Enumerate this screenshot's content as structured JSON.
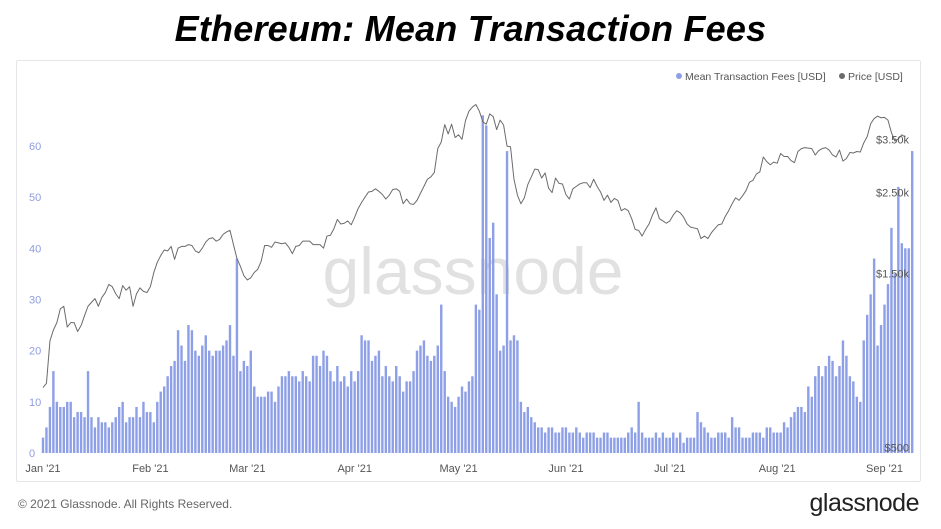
{
  "title": "Ethereum: Mean Transaction Fees",
  "footer": {
    "copyright": "© 2021 Glassnode. All Rights Reserved.",
    "brand": "glassnode"
  },
  "watermark": "glassnode",
  "colors": {
    "fees": "#8d9fe6",
    "price": "#6b6b6b",
    "left_axis_text": "#8f9dde",
    "right_axis_text": "#555555"
  },
  "chart_data": {
    "type": "bar",
    "title": "Ethereum: Mean Transaction Fees",
    "legend": [
      "Mean Transaction Fees [USD]",
      "Price [USD]"
    ],
    "legend_position": "top-right",
    "grid": false,
    "x_ticks": [
      "Jan '21",
      "Feb '21",
      "Mar '21",
      "Apr '21",
      "May '21",
      "Jun '21",
      "Jul '21",
      "Aug '21",
      "Sep '21"
    ],
    "x_tick_days": [
      0,
      31,
      59,
      90,
      120,
      151,
      181,
      212,
      243
    ],
    "y_left": {
      "ticks": [
        0,
        10,
        20,
        30,
        40,
        50,
        60
      ],
      "range": [
        0,
        68
      ]
    },
    "y_right": {
      "ticks": [
        "$500",
        "$1.50k",
        "$2.50k",
        "$3.50k"
      ],
      "tick_values": [
        500,
        1500,
        2500,
        3500
      ],
      "scale": "log",
      "range": [
        480,
        4600
      ]
    },
    "series": [
      {
        "name": "Mean Transaction Fees [USD]",
        "type": "bar",
        "start": "2021-01-01",
        "values": [
          3,
          5,
          9,
          16,
          10,
          9,
          9,
          10,
          10,
          7,
          8,
          8,
          7,
          16,
          7,
          5,
          7,
          6,
          6,
          5,
          6,
          7,
          9,
          10,
          6,
          7,
          7,
          9,
          7,
          10,
          8,
          8,
          6,
          10,
          12,
          13,
          15,
          17,
          18,
          24,
          21,
          18,
          25,
          24,
          20,
          19,
          21,
          23,
          20,
          19,
          20,
          20,
          21,
          22,
          25,
          19,
          38,
          16,
          18,
          17,
          20,
          13,
          11,
          11,
          11,
          12,
          12,
          10,
          13,
          15,
          15,
          16,
          15,
          15,
          14,
          16,
          15,
          14,
          19,
          19,
          17,
          20,
          19,
          16,
          14,
          17,
          14,
          15,
          13,
          16,
          14,
          16,
          23,
          22,
          22,
          18,
          19,
          20,
          15,
          17,
          15,
          14,
          17,
          15,
          12,
          14,
          14,
          16,
          20,
          21,
          22,
          19,
          18,
          19,
          21,
          29,
          16,
          11,
          10,
          9,
          11,
          13,
          12,
          14,
          15,
          29,
          28,
          66,
          64,
          42,
          45,
          31,
          20,
          21,
          59,
          22,
          23,
          22,
          10,
          8,
          9,
          7,
          6,
          5,
          5,
          4,
          5,
          5,
          4,
          4,
          5,
          5,
          4,
          4,
          5,
          4,
          3,
          4,
          4,
          4,
          3,
          3,
          4,
          4,
          3,
          3,
          3,
          3,
          3,
          4,
          5,
          4,
          10,
          4,
          3,
          3,
          3,
          4,
          3,
          4,
          3,
          3,
          4,
          3,
          4,
          2,
          3,
          3,
          3,
          8,
          6,
          5,
          4,
          3,
          3,
          4,
          4,
          4,
          3,
          7,
          5,
          5,
          3,
          3,
          3,
          4,
          4,
          4,
          3,
          5,
          5,
          4,
          4,
          4,
          6,
          5,
          7,
          8,
          9,
          9,
          8,
          13,
          11,
          15,
          17,
          15,
          17,
          19,
          18,
          15,
          17,
          22,
          19,
          15,
          14,
          11,
          10,
          22,
          27,
          31,
          38,
          21,
          25,
          29,
          33,
          44,
          35,
          52,
          41,
          40,
          40,
          59
        ],
        "unit": "USD"
      },
      {
        "name": "Price [USD]",
        "type": "line",
        "start": "2021-01-01",
        "values": [
          730,
          750,
          980,
          1050,
          1100,
          1200,
          1220,
          1070,
          1100,
          1100,
          1040,
          1080,
          1150,
          1220,
          1250,
          1280,
          1220,
          1290,
          1330,
          1400,
          1380,
          1320,
          1280,
          1390,
          1350,
          1380,
          1220,
          1320,
          1370,
          1340,
          1330,
          1380,
          1510,
          1610,
          1680,
          1740,
          1730,
          1780,
          1640,
          1760,
          1780,
          1780,
          1800,
          1790,
          1730,
          1710,
          1760,
          1830,
          1870,
          1880,
          1840,
          1860,
          1920,
          1950,
          1970,
          1800,
          1650,
          1570,
          1480,
          1440,
          1460,
          1510,
          1540,
          1620,
          1790,
          1790,
          1770,
          1830,
          1820,
          1810,
          1820,
          1770,
          1700,
          1780,
          1790,
          1840,
          1840,
          1840,
          1800,
          1800,
          1800,
          1760,
          1900,
          1910,
          1990,
          2110,
          2050,
          2060,
          2090,
          2040,
          2140,
          2260,
          2350,
          2430,
          2510,
          2520,
          2560,
          2520,
          2470,
          2400,
          2460,
          2550,
          2560,
          2520,
          2330,
          2400,
          2330,
          2320,
          2380,
          2490,
          2600,
          2720,
          2760,
          2840,
          3300,
          3440,
          3840,
          3620,
          3850,
          3540,
          3600,
          3500,
          3940,
          4180,
          4290,
          4360,
          4180,
          3910,
          3850,
          4110,
          4040,
          3720,
          3950,
          3830,
          3350,
          3340,
          2720,
          2460,
          2330,
          2420,
          2630,
          2760,
          2900,
          2890,
          2740,
          2830,
          2570,
          2500,
          2740,
          2650,
          2640,
          2470,
          2400,
          2560,
          2600,
          2640,
          2660,
          2660,
          2580,
          2720,
          2600,
          2510,
          2380,
          2460,
          2350,
          2410,
          2380,
          2230,
          2260,
          2230,
          2120,
          1980,
          1970,
          1900,
          1980,
          2050,
          2170,
          2270,
          2120,
          2090,
          2060,
          2090,
          2170,
          2230,
          2200,
          2140,
          2050,
          2010,
          2000,
          1990,
          1870,
          1900,
          1870,
          1940,
          1990,
          2040,
          2050,
          2150,
          2230,
          2330,
          2420,
          2380,
          2450,
          2530,
          2670,
          2700,
          2810,
          2850,
          3130,
          3040,
          2980,
          3030,
          3010,
          3200,
          3140,
          3140,
          3060,
          3020,
          3240,
          3300,
          3320,
          3310,
          3300,
          3170,
          3260,
          3300,
          3320,
          3270,
          3170,
          3130,
          3270,
          3050,
          3100,
          3220,
          3210,
          3240,
          3230,
          3420,
          3560,
          3860,
          3990,
          4050,
          4010,
          4020,
          3950,
          3650,
          3460,
          3510,
          3600,
          3550
        ]
      }
    ]
  }
}
